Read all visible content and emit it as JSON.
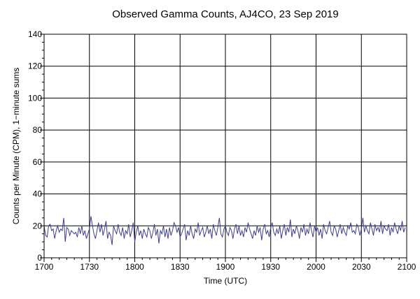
{
  "chart_data": {
    "type": "line",
    "title": "Observed Gamma Counts, AJ4CO, 23 Sep 2019",
    "xlabel": "Time (UTC)",
    "ylabel": "Counts per Minute (CPM), 1−minute sums",
    "x_tick_labels": [
      "1700",
      "1730",
      "1800",
      "1830",
      "1900",
      "1930",
      "2000",
      "2030",
      "2100"
    ],
    "y_tick_labels": [
      "0",
      "20",
      "40",
      "60",
      "80",
      "100",
      "120",
      "140"
    ],
    "xlim_minutes": [
      0,
      240
    ],
    "ylim": [
      0,
      140
    ],
    "grid": true,
    "line_color": "#3c3c96",
    "series": [
      {
        "x_start": "1700",
        "x_step_minutes": 1,
        "values": [
          20,
          14,
          13,
          20,
          21,
          17,
          18,
          12,
          17,
          20,
          16,
          18,
          17,
          25,
          10,
          19,
          18,
          14,
          17,
          16,
          15,
          16,
          13,
          19,
          15,
          20,
          14,
          17,
          12,
          15,
          18,
          26,
          20,
          15,
          12,
          17,
          22,
          16,
          21,
          14,
          18,
          23,
          12,
          16,
          14,
          8,
          20,
          17,
          15,
          21,
          16,
          14,
          19,
          12,
          17,
          15,
          21,
          13,
          17,
          22,
          10,
          16,
          20,
          14,
          17,
          12,
          18,
          15,
          13,
          19,
          17,
          12,
          16,
          21,
          14,
          18,
          9,
          17,
          15,
          20,
          13,
          18,
          12,
          19,
          14,
          17,
          22,
          20,
          16,
          19,
          13,
          15,
          18,
          21,
          11,
          17,
          14,
          20,
          15,
          12,
          18,
          16,
          22,
          14,
          17,
          19,
          13,
          16,
          20,
          15,
          18,
          12,
          21,
          17,
          14,
          19,
          25,
          15,
          13,
          18,
          20,
          16,
          14,
          19,
          17,
          12,
          18,
          21,
          15,
          20,
          14,
          17,
          13,
          19,
          16,
          22,
          18,
          15,
          12,
          17,
          14,
          20,
          16,
          19,
          11,
          18,
          21,
          15,
          17,
          13,
          19,
          22,
          16,
          14,
          18,
          15,
          20,
          12,
          17,
          21,
          14,
          19,
          16,
          24,
          13,
          18,
          15,
          20,
          17,
          12,
          19,
          16,
          21,
          14,
          18,
          15,
          22,
          17,
          13,
          20,
          16,
          19,
          14,
          18,
          12,
          21,
          17,
          15,
          19,
          23,
          16,
          14,
          20,
          18,
          13,
          17,
          21,
          15,
          19,
          16,
          14,
          20,
          18,
          22,
          16,
          17,
          15,
          21,
          19,
          14,
          18,
          25,
          16,
          20,
          17,
          15,
          22,
          18,
          14,
          21,
          17,
          19,
          16,
          23,
          15,
          20,
          18,
          17,
          21,
          14,
          19,
          16,
          22,
          18,
          15,
          20,
          17,
          23,
          16,
          19
        ]
      }
    ]
  }
}
